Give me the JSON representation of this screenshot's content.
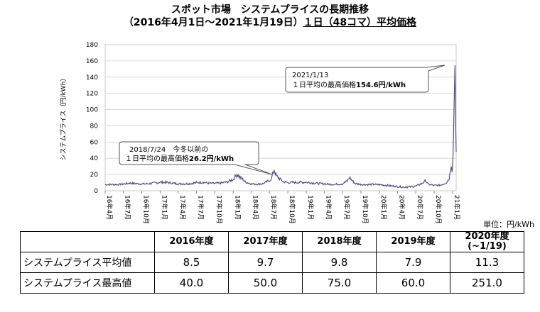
{
  "title_line1": "スポット市場　システムプライスの長期推移",
  "title_line2_a": "（2016年4月1日～2021年1月19日）",
  "title_line2_b": "１日（48コマ）平均価格",
  "unit_label": "単位：円/kWh",
  "chart_data": {
    "type": "line",
    "ylabel": "システムプライス（円/kWh）",
    "ylim": [
      0,
      180
    ],
    "yticks": [
      0,
      20,
      40,
      60,
      80,
      100,
      120,
      140,
      160,
      180
    ],
    "x_range": [
      "2016-04-01",
      "2021-01-19"
    ],
    "xtick_labels": [
      "16年4月",
      "16年7月",
      "16年10月",
      "17年1月",
      "17年4月",
      "17年7月",
      "17年10月",
      "18年1月",
      "18年4月",
      "18年7月",
      "18年10月",
      "19年1月",
      "19年4月",
      "19年7月",
      "19年10月",
      "20年1月",
      "20年4月",
      "20年7月",
      "20年10月",
      "21年1月"
    ],
    "series": [
      {
        "color": "#5b4a86",
        "points": [
          [
            "2016-04-01",
            7.5
          ],
          [
            "2016-05-01",
            7.8
          ],
          [
            "2016-06-01",
            7.6
          ],
          [
            "2016-07-01",
            8.2
          ],
          [
            "2016-08-01",
            9.5
          ],
          [
            "2016-09-01",
            8.8
          ],
          [
            "2016-10-01",
            8.4
          ],
          [
            "2016-11-01",
            8.6
          ],
          [
            "2016-12-01",
            9.5
          ],
          [
            "2017-01-01",
            10.5
          ],
          [
            "2017-02-01",
            10.2
          ],
          [
            "2017-03-01",
            9.4
          ],
          [
            "2017-04-01",
            8.5
          ],
          [
            "2017-05-01",
            8.6
          ],
          [
            "2017-06-01",
            8.8
          ],
          [
            "2017-07-01",
            10.0
          ],
          [
            "2017-08-01",
            10.5
          ],
          [
            "2017-09-01",
            9.2
          ],
          [
            "2017-10-01",
            9.0
          ],
          [
            "2017-11-01",
            9.5
          ],
          [
            "2017-12-01",
            10.8
          ],
          [
            "2018-01-01",
            14.0
          ],
          [
            "2018-01-20",
            20.5
          ],
          [
            "2018-02-05",
            16.0
          ],
          [
            "2018-02-20",
            13.5
          ],
          [
            "2018-03-01",
            11.0
          ],
          [
            "2018-04-01",
            8.5
          ],
          [
            "2018-05-01",
            8.2
          ],
          [
            "2018-06-01",
            8.8
          ],
          [
            "2018-07-10",
            14.0
          ],
          [
            "2018-07-24",
            26.2
          ],
          [
            "2018-08-05",
            18.0
          ],
          [
            "2018-08-20",
            15.0
          ],
          [
            "2018-09-10",
            11.0
          ],
          [
            "2018-10-01",
            10.0
          ],
          [
            "2018-11-01",
            10.2
          ],
          [
            "2018-12-01",
            10.4
          ],
          [
            "2019-01-01",
            10.5
          ],
          [
            "2019-02-01",
            9.6
          ],
          [
            "2019-03-01",
            9.0
          ],
          [
            "2019-04-01",
            8.5
          ],
          [
            "2019-05-01",
            8.0
          ],
          [
            "2019-06-01",
            8.0
          ],
          [
            "2019-07-01",
            8.5
          ],
          [
            "2019-07-25",
            12.0
          ],
          [
            "2019-08-05",
            16.5
          ],
          [
            "2019-08-20",
            12.0
          ],
          [
            "2019-09-01",
            9.0
          ],
          [
            "2019-10-01",
            7.8
          ],
          [
            "2019-11-01",
            7.5
          ],
          [
            "2019-12-01",
            7.8
          ],
          [
            "2020-01-01",
            7.5
          ],
          [
            "2020-02-01",
            6.8
          ],
          [
            "2020-03-01",
            6.0
          ],
          [
            "2020-04-01",
            5.2
          ],
          [
            "2020-05-01",
            4.5
          ],
          [
            "2020-06-01",
            4.8
          ],
          [
            "2020-07-01",
            5.6
          ],
          [
            "2020-08-01",
            9.0
          ],
          [
            "2020-08-20",
            12.5
          ],
          [
            "2020-09-01",
            8.0
          ],
          [
            "2020-10-01",
            6.5
          ],
          [
            "2020-11-01",
            6.8
          ],
          [
            "2020-12-01",
            10.0
          ],
          [
            "2020-12-15",
            15.0
          ],
          [
            "2020-12-25",
            30.0
          ],
          [
            "2020-12-30",
            23.0
          ],
          [
            "2021-01-03",
            40.0
          ],
          [
            "2021-01-06",
            70.0
          ],
          [
            "2021-01-09",
            110.0
          ],
          [
            "2021-01-11",
            130.0
          ],
          [
            "2021-01-13",
            154.6
          ],
          [
            "2021-01-15",
            120.0
          ],
          [
            "2021-01-17",
            78.0
          ],
          [
            "2021-01-19",
            48.0
          ]
        ]
      }
    ],
    "annotations": [
      {
        "id": "peak2018",
        "line1": "2018/7/24　今冬以前の",
        "line2_a": "１日平均の最高価格",
        "line2_b": "26.2円/kWh",
        "date": "2018-07-24",
        "value": 26.2
      },
      {
        "id": "peak2021",
        "line1": "2021/1/13",
        "line2_a": "１日平均の最高価格",
        "line2_b": "154.6円/kWh",
        "date": "2021-01-13",
        "value": 154.6
      }
    ]
  },
  "table": {
    "headers": [
      "2016年度",
      "2017年度",
      "2018年度",
      "2019年度",
      "2020年度",
      "(~1/19)"
    ],
    "rows": [
      {
        "label": "システムプライス平均値",
        "values": [
          "8.5",
          "9.7",
          "9.8",
          "7.9",
          "11.3"
        ]
      },
      {
        "label": "システムプライス最高値",
        "values": [
          "40.0",
          "50.0",
          "75.0",
          "60.0",
          "251.0"
        ]
      }
    ]
  }
}
